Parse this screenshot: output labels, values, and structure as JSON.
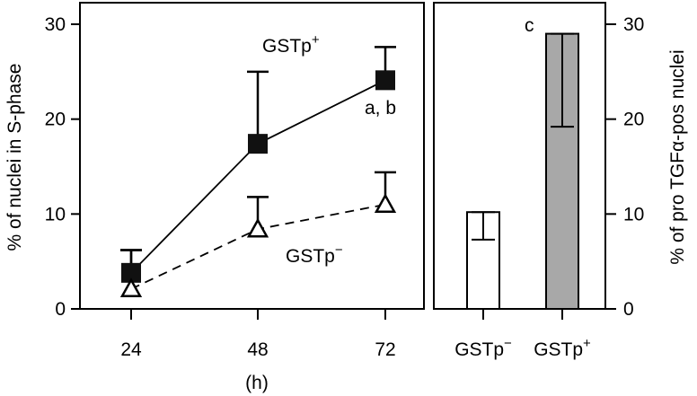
{
  "chart_data": [
    {
      "type": "line",
      "xlabel": "(h)",
      "ylabel": "% of nuclei in S-phase",
      "x": [
        "24",
        "48",
        "72"
      ],
      "ylim": [
        0,
        30
      ],
      "yticks": [
        "0",
        "10",
        "20",
        "30"
      ],
      "grid": false,
      "series": [
        {
          "name": "GSTp",
          "name_sup": "+",
          "marker": "filled-square",
          "line_style": "solid",
          "values": [
            3.8,
            17.4,
            24.1
          ],
          "error_upper": [
            6.2,
            25.0,
            27.6
          ]
        },
        {
          "name": "GSTp",
          "name_sup": "−",
          "marker": "open-triangle",
          "line_style": "dashed",
          "values": [
            2.1,
            8.4,
            11.0
          ],
          "error_upper": [
            6.2,
            11.8,
            14.4
          ]
        }
      ],
      "annotations": [
        {
          "text": "a, b",
          "attached_to": "GSTp+ at 72"
        }
      ]
    },
    {
      "type": "bar",
      "ylabel": "% of pro TGFα-pos nuclei",
      "categories": [
        "GSTp−",
        "GSTp+"
      ],
      "category_parts": [
        {
          "base": "GSTp",
          "sup": "−"
        },
        {
          "base": "GSTp",
          "sup": "+"
        }
      ],
      "values": [
        10.2,
        29.0
      ],
      "error_low": [
        7.3,
        19.2
      ],
      "error_high": [
        10.2,
        29.0
      ],
      "ylim": [
        0,
        32
      ],
      "yticks": [
        "0",
        "10",
        "20",
        "30"
      ],
      "colors": [
        "#ffffff",
        "#a8a8a8"
      ],
      "annotations": [
        {
          "text": "c",
          "attached_to": "GSTp+"
        }
      ]
    }
  ]
}
